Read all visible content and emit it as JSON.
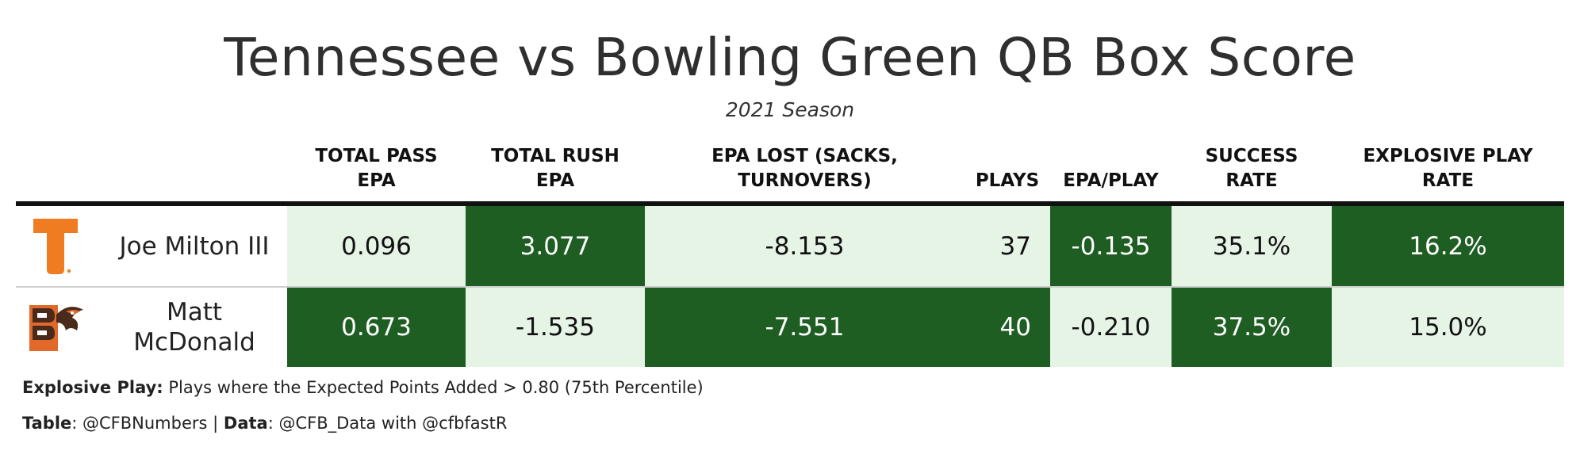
{
  "chart_data": {
    "type": "table",
    "title": "Tennessee vs Bowling Green QB Box Score",
    "subtitle": "2021 Season",
    "columns": [
      {
        "key": "pass_epa",
        "label": "TOTAL PASS EPA",
        "lines": [
          "TOTAL PASS",
          "EPA"
        ]
      },
      {
        "key": "rush_epa",
        "label": "TOTAL RUSH EPA",
        "lines": [
          "TOTAL RUSH",
          "EPA"
        ]
      },
      {
        "key": "epa_lost",
        "label": "EPA LOST (SACKS, TURNOVERS)",
        "lines": [
          "EPA LOST (SACKS,",
          "TURNOVERS)"
        ]
      },
      {
        "key": "plays",
        "label": "PLAYS",
        "lines": [
          "PLAYS"
        ]
      },
      {
        "key": "epa_play",
        "label": "EPA/PLAY",
        "lines": [
          "EPA/PLAY"
        ]
      },
      {
        "key": "success",
        "label": "SUCCESS RATE",
        "lines": [
          "SUCCESS",
          "RATE"
        ]
      },
      {
        "key": "explosive",
        "label": "EXPLOSIVE PLAY RATE",
        "lines": [
          "EXPLOSIVE PLAY",
          "RATE"
        ]
      }
    ],
    "rows": [
      {
        "team_logo": "tennessee-power-t-logo",
        "player_lines": [
          "Joe Milton III"
        ],
        "values": {
          "pass_epa": "0.096",
          "rush_epa": "3.077",
          "epa_lost": "-8.153",
          "plays": "37",
          "epa_play": "-0.135",
          "success": "35.1%",
          "explosive": "16.2%"
        },
        "highlight": {
          "pass_epa": false,
          "rush_epa": true,
          "epa_lost": false,
          "plays": false,
          "epa_play": true,
          "success": false,
          "explosive": true
        }
      },
      {
        "team_logo": "bowling-green-bg-falcon-logo",
        "player_lines": [
          "Matt",
          "McDonald"
        ],
        "values": {
          "pass_epa": "0.673",
          "rush_epa": "-1.535",
          "epa_lost": "-7.551",
          "plays": "40",
          "epa_play": "-0.210",
          "success": "37.5%",
          "explosive": "15.0%"
        },
        "highlight": {
          "pass_epa": true,
          "rush_epa": false,
          "epa_lost": true,
          "plays": true,
          "epa_play": false,
          "success": true,
          "explosive": false
        }
      }
    ]
  },
  "colors": {
    "highlight_bg": "#1e5e23",
    "highlight_text": "#ffffff",
    "plain_bg": "#e6f4e6",
    "plain_text": "#111111",
    "tennessee_orange": "#ef7c21",
    "bg_brown": "#4a2a1a",
    "bg_orange": "#e0692b"
  },
  "footnotes": {
    "explosive_label": "Explosive Play:",
    "explosive_text": " Plays where the Expected Points Added > 0.80 (75th Percentile)",
    "table_label": "Table",
    "table_value": ": @CFBNumbers | ",
    "data_label": "Data",
    "data_value": ": @CFB_Data with @cfbfastR"
  }
}
